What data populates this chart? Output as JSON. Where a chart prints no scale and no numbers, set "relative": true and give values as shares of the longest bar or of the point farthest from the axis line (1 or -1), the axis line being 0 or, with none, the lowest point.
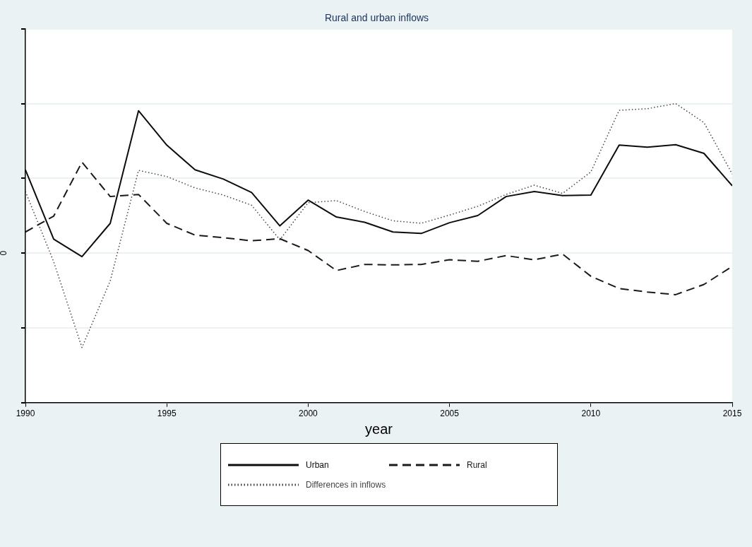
{
  "chart_data": {
    "type": "line",
    "title": "Rural and urban inflows",
    "xlabel": "year",
    "relative": true,
    "xlim": [
      1990,
      2015
    ],
    "xticks": [
      1990,
      1995,
      2000,
      2005,
      2010,
      2015
    ],
    "grid": "y",
    "legend": "bottom",
    "marker": "none",
    "x": [
      1990,
      1991,
      1992,
      1993,
      1994,
      1995,
      1996,
      1997,
      1998,
      1999,
      2000,
      2001,
      2002,
      2003,
      2004,
      2005,
      2006,
      2007,
      2008,
      2009,
      2010,
      2011,
      2012,
      2013,
      2014,
      2015
    ],
    "annotations": [
      "0"
    ],
    "series": [
      {
        "name": "Urban",
        "color": "#0d0d0d",
        "line_style": "solid",
        "values": [
          0.557,
          0.093,
          -0.024,
          0.199,
          0.952,
          0.722,
          0.557,
          0.495,
          0.405,
          0.182,
          0.354,
          0.241,
          0.206,
          0.141,
          0.131,
          0.203,
          0.251,
          0.378,
          0.412,
          0.385,
          0.388,
          0.722,
          0.708,
          0.725,
          0.667,
          0.45
        ]
      },
      {
        "name": "Rural",
        "color": "#1a1a1a",
        "line_style": "dashed",
        "values": [
          0.141,
          0.247,
          0.608,
          0.378,
          0.392,
          0.199,
          0.12,
          0.103,
          0.082,
          0.096,
          0.017,
          -0.117,
          -0.076,
          -0.079,
          -0.076,
          -0.045,
          -0.055,
          -0.017,
          -0.045,
          -0.007,
          -0.155,
          -0.237,
          -0.261,
          -0.278,
          -0.21,
          -0.089
        ]
      },
      {
        "name": "Differences in inflows",
        "color": "#444444",
        "line_style": "dotted",
        "values": [
          0.412,
          -0.058,
          -0.632,
          -0.186,
          0.553,
          0.512,
          0.436,
          0.388,
          0.32,
          0.089,
          0.337,
          0.351,
          0.278,
          0.216,
          0.199,
          0.254,
          0.313,
          0.392,
          0.454,
          0.399,
          0.543,
          0.955,
          0.966,
          1,
          0.873,
          0.529
        ]
      }
    ]
  }
}
